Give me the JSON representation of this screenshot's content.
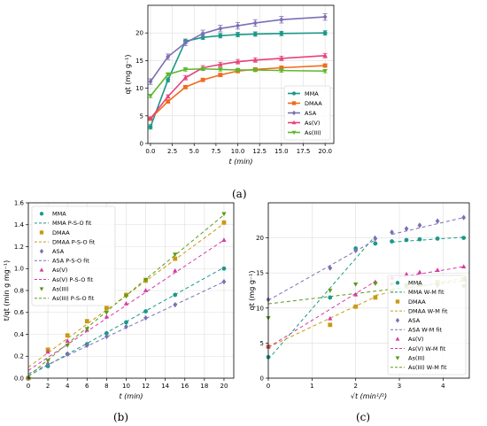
{
  "chart_data": [
    {
      "id": "a",
      "type": "line",
      "caption": "(a)",
      "xlabel": "t (min)",
      "ylabel": "qt (mg g⁻¹)",
      "xlim": [
        -0.3,
        21
      ],
      "ylim": [
        0,
        25
      ],
      "xticks": [
        0,
        2.5,
        5,
        7.5,
        10,
        12.5,
        15,
        17.5,
        20
      ],
      "yticks": [
        0,
        5,
        10,
        15,
        20
      ],
      "xtick_labels": [
        "0.0",
        "2.5",
        "5.0",
        "7.5",
        "10.0",
        "12.5",
        "15.0",
        "17.5",
        "20.0"
      ],
      "ytick_labels": [
        "0",
        "5",
        "10",
        "15",
        "20"
      ],
      "grid": true,
      "legend_position": "bottom-right",
      "x": [
        0,
        2,
        4,
        6,
        8,
        10,
        12,
        15,
        20
      ],
      "series": [
        {
          "name": "MMA",
          "color": "#1a9988",
          "marker": "circle",
          "values": [
            3.0,
            11.5,
            18.5,
            19.2,
            19.5,
            19.7,
            19.8,
            19.9,
            20.0
          ],
          "err": [
            0.4,
            0.4,
            0.4,
            0.4,
            0.4,
            0.4,
            0.4,
            0.4,
            0.4
          ]
        },
        {
          "name": "DMAA",
          "color": "#f26b1d",
          "marker": "square",
          "values": [
            4.5,
            7.6,
            10.2,
            11.5,
            12.4,
            13.1,
            13.4,
            13.7,
            14.1
          ],
          "err": [
            0.3,
            0.3,
            0.3,
            0.3,
            0.3,
            0.3,
            0.3,
            0.3,
            0.3
          ]
        },
        {
          "name": "ASA",
          "color": "#7b70b5",
          "marker": "diamond",
          "values": [
            11.2,
            15.7,
            18.2,
            19.9,
            20.8,
            21.3,
            21.8,
            22.4,
            22.9
          ],
          "err": [
            0.5,
            0.5,
            0.5,
            0.6,
            0.6,
            0.6,
            0.6,
            0.6,
            0.6
          ]
        },
        {
          "name": "As(V)",
          "color": "#e8417b",
          "marker": "triangle-up",
          "values": [
            4.5,
            8.5,
            11.9,
            13.7,
            14.3,
            14.8,
            15.1,
            15.4,
            15.9
          ],
          "err": [
            0.3,
            0.3,
            0.4,
            0.4,
            0.4,
            0.4,
            0.4,
            0.4,
            0.4
          ]
        },
        {
          "name": "As(III)",
          "color": "#5cb82a",
          "marker": "triangle-down",
          "values": [
            8.6,
            12.5,
            13.4,
            13.5,
            13.4,
            13.3,
            13.3,
            13.2,
            13.1
          ],
          "err": [
            0.3,
            0.3,
            0.3,
            0.3,
            0.3,
            0.3,
            0.3,
            0.3,
            0.3
          ]
        }
      ]
    },
    {
      "id": "b",
      "type": "scatter",
      "caption": "(b)",
      "xlabel": "t (min)",
      "ylabel": "t/qt (min g mg⁻¹)",
      "xlim": [
        0,
        21
      ],
      "ylim": [
        0,
        1.6
      ],
      "xticks": [
        0,
        2,
        4,
        6,
        8,
        10,
        12,
        14,
        16,
        18,
        20
      ],
      "yticks": [
        0,
        0.2,
        0.4,
        0.6,
        0.8,
        1.0,
        1.2,
        1.4,
        1.6
      ],
      "xtick_labels": [
        "0",
        "2",
        "4",
        "6",
        "8",
        "10",
        "12",
        "14",
        "16",
        "18",
        "20"
      ],
      "ytick_labels": [
        "0.0",
        "0.2",
        "0.4",
        "0.6",
        "0.8",
        "1.0",
        "1.2",
        "1.4",
        "1.6"
      ],
      "grid": true,
      "legend_position": "top-left",
      "x": [
        0,
        2,
        4,
        6,
        8,
        10,
        12,
        15,
        20
      ],
      "series": [
        {
          "name": "MMA",
          "fit_name": "MMA P-S-O fit",
          "color": "#1a9988",
          "marker": "circle",
          "values": [
            0.0,
            0.11,
            0.22,
            0.31,
            0.41,
            0.51,
            0.61,
            0.76,
            1.0
          ],
          "fit": [
            0.02,
            1.01
          ]
        },
        {
          "name": "DMAA",
          "fit_name": "DMAA P-S-O fit",
          "color": "#c89a12",
          "marker": "square",
          "values": [
            0.0,
            0.26,
            0.39,
            0.52,
            0.64,
            0.76,
            0.89,
            1.09,
            1.42
          ],
          "fit": [
            0.1,
            1.41
          ]
        },
        {
          "name": "ASA",
          "fit_name": "ASA P-S-O fit",
          "color": "#7b70b5",
          "marker": "diamond",
          "values": [
            0.0,
            0.13,
            0.22,
            0.3,
            0.38,
            0.47,
            0.55,
            0.67,
            0.88
          ],
          "fit": [
            0.04,
            0.88
          ]
        },
        {
          "name": "As(V)",
          "fit_name": "As(V) P-S-O fit",
          "color": "#d63aa5",
          "marker": "triangle-up",
          "values": [
            0.0,
            0.24,
            0.34,
            0.44,
            0.56,
            0.68,
            0.8,
            0.98,
            1.26
          ],
          "fit": [
            0.07,
            1.26
          ]
        },
        {
          "name": "As(III)",
          "fit_name": "As(III) P-S-O fit",
          "color": "#5a9a1a",
          "marker": "triangle-down",
          "values": [
            0.0,
            0.16,
            0.3,
            0.45,
            0.6,
            0.75,
            0.9,
            1.13,
            1.5
          ],
          "fit": [
            0.02,
            1.49
          ]
        }
      ]
    },
    {
      "id": "c",
      "type": "scatter",
      "caption": "(c)",
      "xlabel": "√t (min¹/²)",
      "ylabel": "qt (mg g⁻¹)",
      "xlim": [
        0,
        4.6
      ],
      "ylim": [
        0,
        25
      ],
      "xticks": [
        0,
        1,
        2,
        3,
        4
      ],
      "yticks": [
        0,
        5,
        10,
        15,
        20
      ],
      "xtick_labels": [
        "0",
        "1",
        "2",
        "3",
        "4"
      ],
      "ytick_labels": [
        "0",
        "5",
        "10",
        "15",
        "20"
      ],
      "grid": true,
      "legend_position": "bottom-right",
      "x": [
        0,
        1.414,
        2,
        2.449,
        2.828,
        3.162,
        3.464,
        3.873,
        4.472
      ],
      "series": [
        {
          "name": "MMA",
          "fit_name": "MMA W-M fit",
          "color": "#1a9988",
          "marker": "circle",
          "values": [
            3.0,
            11.5,
            18.5,
            19.2,
            19.5,
            19.7,
            19.8,
            19.9,
            20.0
          ],
          "fit_segments": [
            [
              [
                0,
                2.7
              ],
              [
                2.45,
                20.3
              ]
            ],
            [
              [
                2.828,
                19.4
              ],
              [
                4.472,
                20.1
              ]
            ]
          ]
        },
        {
          "name": "DMAA",
          "fit_name": "DMAA W-M fit",
          "color": "#c89a12",
          "marker": "square",
          "values": [
            4.5,
            7.6,
            10.2,
            11.5,
            12.4,
            13.1,
            13.4,
            13.7,
            14.1
          ],
          "fit_segments": [
            [
              [
                0,
                4.4
              ],
              [
                2.45,
                11.6
              ]
            ],
            [
              [
                2.45,
                11.8
              ],
              [
                4.472,
                14.3
              ]
            ]
          ]
        },
        {
          "name": "ASA",
          "fit_name": "ASA W-M fit",
          "color": "#7b70b5",
          "marker": "diamond",
          "values": [
            11.2,
            15.7,
            18.2,
            19.9,
            20.8,
            21.3,
            21.8,
            22.4,
            22.9
          ],
          "fit_segments": [
            [
              [
                0,
                11.1
              ],
              [
                2.45,
                19.7
              ]
            ],
            [
              [
                2.828,
                20.5
              ],
              [
                4.472,
                22.9
              ]
            ]
          ]
        },
        {
          "name": "As(V)",
          "fit_name": "As(V) W-M fit",
          "color": "#d63aa5",
          "marker": "triangle-up",
          "values": [
            4.5,
            8.5,
            11.9,
            13.7,
            14.3,
            14.8,
            15.1,
            15.4,
            15.9
          ],
          "fit_segments": [
            [
              [
                0,
                4.4
              ],
              [
                2.45,
                13.8
              ]
            ],
            [
              [
                2.828,
                14.2
              ],
              [
                4.472,
                15.9
              ]
            ]
          ]
        },
        {
          "name": "As(III)",
          "fit_name": "As(III) W-M fit",
          "color": "#5a9a1a",
          "marker": "triangle-down",
          "values": [
            8.6,
            12.5,
            13.4,
            13.5,
            13.4,
            13.3,
            13.3,
            13.2,
            13.1
          ],
          "fit_segments": [
            [
              [
                0,
                10.6
              ],
              [
                4.472,
                13.9
              ]
            ]
          ]
        }
      ]
    }
  ]
}
